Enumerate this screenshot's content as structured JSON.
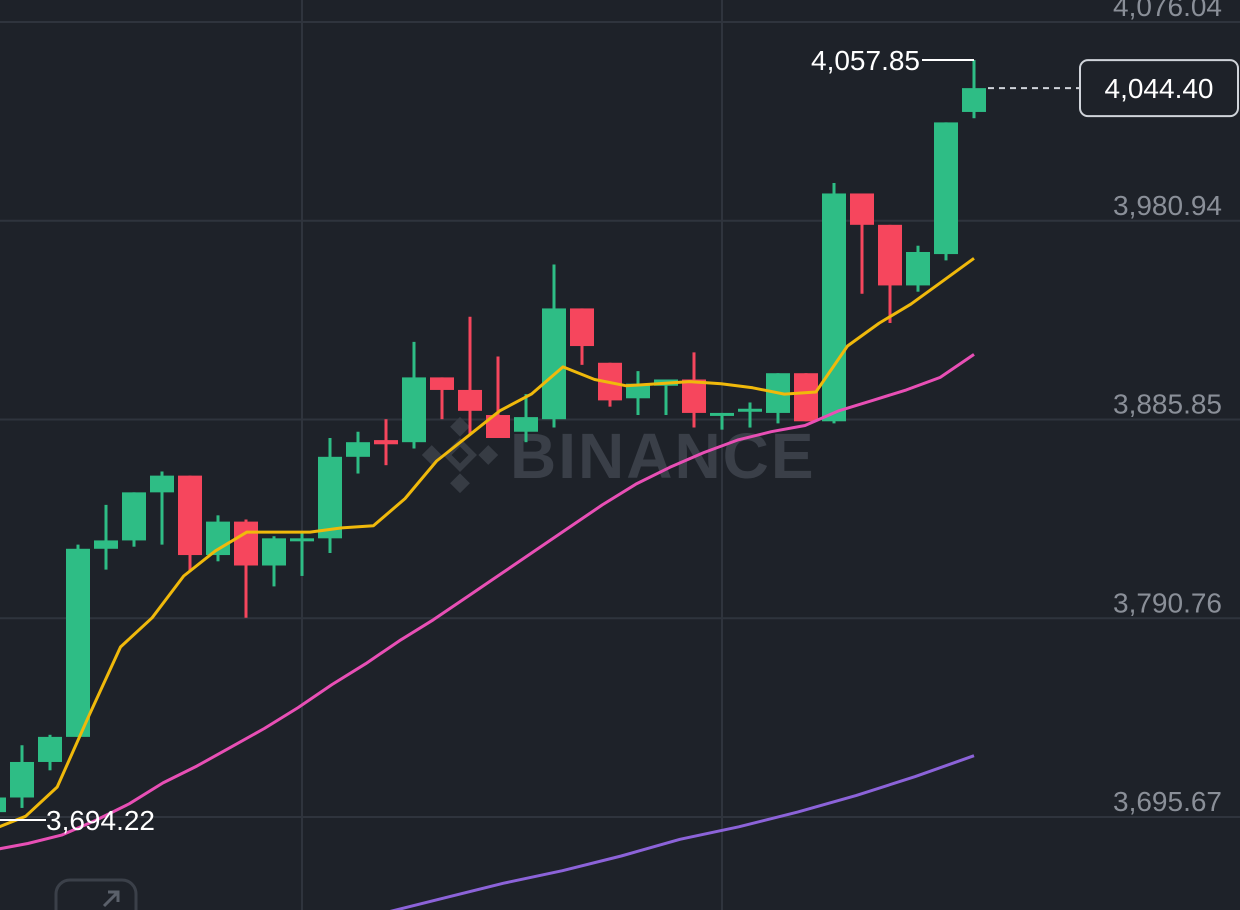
{
  "chart_data": {
    "type": "candlestick",
    "colors": {
      "up": "#2ebd85",
      "down": "#f6465d",
      "ma_short": "#f0b90b",
      "ma_mid": "#e84fb5",
      "ma_long": "#8c63d9",
      "grid": "#2f343d",
      "background": "#1e2229"
    },
    "y_axis": {
      "ylim": [
        3660,
        4080
      ],
      "tick_labels": [
        "4,076.04",
        "3,980.94",
        "3,885.85",
        "3,790.76",
        "3,695.67"
      ],
      "tick_values": [
        4076.04,
        3980.94,
        3885.85,
        3790.76,
        3695.67
      ]
    },
    "x_gridlines": [
      12,
      27
    ],
    "candles": [
      {
        "o": 3698,
        "h": 3707,
        "l": 3692,
        "c": 3705
      },
      {
        "o": 3705,
        "h": 3730,
        "l": 3700,
        "c": 3722
      },
      {
        "o": 3722,
        "h": 3735,
        "l": 3718,
        "c": 3734
      },
      {
        "o": 3734,
        "h": 3826,
        "l": 3734,
        "c": 3824
      },
      {
        "o": 3824,
        "h": 3845,
        "l": 3814,
        "c": 3828
      },
      {
        "o": 3828,
        "h": 3850,
        "l": 3825,
        "c": 3851
      },
      {
        "o": 3851,
        "h": 3861,
        "l": 3826,
        "c": 3859
      },
      {
        "o": 3859,
        "h": 3859,
        "l": 3813,
        "c": 3821
      },
      {
        "o": 3821,
        "h": 3840,
        "l": 3818,
        "c": 3837
      },
      {
        "o": 3837,
        "h": 3838,
        "l": 3791,
        "c": 3816
      },
      {
        "o": 3816,
        "h": 3830,
        "l": 3806,
        "c": 3829
      },
      {
        "o": 3829,
        "h": 3832,
        "l": 3811,
        "c": 3829
      },
      {
        "o": 3829,
        "h": 3877,
        "l": 3822,
        "c": 3868
      },
      {
        "o": 3868,
        "h": 3880,
        "l": 3860,
        "c": 3875
      },
      {
        "o": 3876,
        "h": 3886,
        "l": 3864,
        "c": 3874
      },
      {
        "o": 3875,
        "h": 3923,
        "l": 3872,
        "c": 3906
      },
      {
        "o": 3906,
        "h": 3906,
        "l": 3886,
        "c": 3900
      },
      {
        "o": 3900,
        "h": 3935,
        "l": 3879,
        "c": 3890
      },
      {
        "o": 3888,
        "h": 3916,
        "l": 3878,
        "c": 3877
      },
      {
        "o": 3880,
        "h": 3898,
        "l": 3875,
        "c": 3887
      },
      {
        "o": 3886,
        "h": 3960,
        "l": 3882,
        "c": 3939
      },
      {
        "o": 3939,
        "h": 3939,
        "l": 3912,
        "c": 3921
      },
      {
        "o": 3913,
        "h": 3913,
        "l": 3892,
        "c": 3895
      },
      {
        "o": 3896,
        "h": 3909,
        "l": 3888,
        "c": 3903
      },
      {
        "o": 3902,
        "h": 3905,
        "l": 3888,
        "c": 3905
      },
      {
        "o": 3905,
        "h": 3918,
        "l": 3882,
        "c": 3889
      },
      {
        "o": 3889,
        "h": 3888,
        "l": 3881,
        "c": 3889
      },
      {
        "o": 3890,
        "h": 3894,
        "l": 3882,
        "c": 3891
      },
      {
        "o": 3889,
        "h": 3907,
        "l": 3884,
        "c": 3908
      },
      {
        "o": 3908,
        "h": 3908,
        "l": 3886,
        "c": 3885
      },
      {
        "o": 3885,
        "h": 3999,
        "l": 3884,
        "c": 3994
      },
      {
        "o": 3994,
        "h": 3994,
        "l": 3946,
        "c": 3979
      },
      {
        "o": 3979,
        "h": 3979,
        "l": 3932,
        "c": 3950
      },
      {
        "o": 3950,
        "h": 3969,
        "l": 3947,
        "c": 3966
      },
      {
        "o": 3965,
        "h": 4028,
        "l": 3962,
        "c": 4028
      },
      {
        "o": 4033,
        "h": 4057.85,
        "l": 4030,
        "c": 4044.4
      }
    ],
    "ma_short": [
      3690,
      3696,
      3710,
      3744,
      3777,
      3791,
      3811,
      3823,
      3832,
      3832,
      3832,
      3834,
      3835,
      3848,
      3866,
      3878,
      3890,
      3898,
      3911,
      3905,
      3902,
      3903,
      3904,
      3903,
      3901,
      3898,
      3899,
      3921,
      3932,
      3941,
      3952,
      3963
    ],
    "ma_short_start_index": 0,
    "ma_mid": [
      3680,
      3683,
      3687,
      3694,
      3702,
      3712,
      3720,
      3729,
      3738,
      3748,
      3759,
      3769,
      3780,
      3790,
      3801,
      3812,
      3823,
      3834,
      3845,
      3855,
      3863,
      3870,
      3876,
      3880,
      3883,
      3890,
      3895,
      3900,
      3906,
      3917
    ],
    "ma_mid_start_index": 0,
    "ma_long": [
      3650,
      3657,
      3664,
      3670,
      3677,
      3685,
      3691,
      3698,
      3706,
      3715,
      3725
    ],
    "ma_long_start_index": 14,
    "high_label": "4,057.85",
    "low_label": "3,694.22",
    "last_price_label": "4,044.40",
    "watermark": "BINANCE"
  }
}
